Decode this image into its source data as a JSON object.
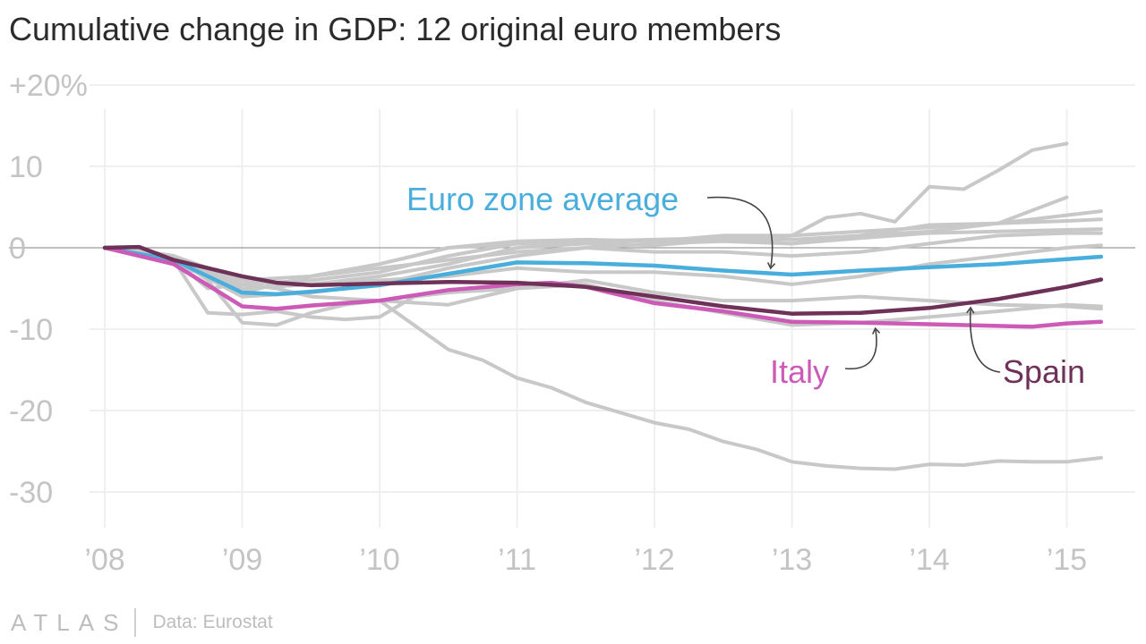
{
  "chart_data": {
    "type": "line",
    "title": "Cumulative change in GDP: 12 original euro members",
    "source": "Data: Eurostat",
    "brand": "ATLAS",
    "xlim": [
      2008,
      2015.25
    ],
    "ylim": [
      -32,
      22
    ],
    "y_ticks": [
      {
        "value": 20,
        "label": "+20%"
      },
      {
        "value": 10,
        "label": "10"
      },
      {
        "value": 0,
        "label": "0"
      },
      {
        "value": -10,
        "label": "-10"
      },
      {
        "value": -20,
        "label": "-20"
      },
      {
        "value": -30,
        "label": "-30"
      }
    ],
    "x_ticks": [
      {
        "value": 2008,
        "label": "’08"
      },
      {
        "value": 2009,
        "label": "’09"
      },
      {
        "value": 2010,
        "label": "’10"
      },
      {
        "value": 2011,
        "label": "’11"
      },
      {
        "value": 2012,
        "label": "’12"
      },
      {
        "value": 2013,
        "label": "’13"
      },
      {
        "value": 2014,
        "label": "’14"
      },
      {
        "value": 2015,
        "label": "’15"
      }
    ],
    "colors": {
      "background_series": "#c8c8c8",
      "euro_zone_average": "#4aaedc",
      "italy": "#cc5bb8",
      "spain": "#6e3158",
      "zero_line": "#9a9a9a",
      "arrow": "#444444"
    },
    "series": [
      {
        "name": "Euro zone average",
        "color": "#4aaedc",
        "x": [
          2008,
          2008.5,
          2009,
          2009.25,
          2009.5,
          2010,
          2010.5,
          2011,
          2011.5,
          2012,
          2012.5,
          2013,
          2013.5,
          2014,
          2014.5,
          2015,
          2015.25
        ],
        "y": [
          0,
          -1.5,
          -5.5,
          -5.7,
          -5.4,
          -4.6,
          -3.2,
          -1.8,
          -1.9,
          -2.2,
          -2.8,
          -3.3,
          -2.8,
          -2.4,
          -2.0,
          -1.4,
          -1.1
        ]
      },
      {
        "name": "Italy",
        "color": "#cc5bb8",
        "x": [
          2008,
          2008.5,
          2009,
          2009.25,
          2009.5,
          2010,
          2010.5,
          2011,
          2011.25,
          2011.5,
          2012,
          2012.5,
          2013,
          2013.5,
          2014,
          2014.5,
          2014.75,
          2015,
          2015.25
        ],
        "y": [
          0,
          -2.0,
          -7.2,
          -7.5,
          -7.1,
          -6.5,
          -5.2,
          -4.5,
          -4.3,
          -4.8,
          -6.8,
          -7.8,
          -9.1,
          -9.2,
          -9.4,
          -9.6,
          -9.7,
          -9.3,
          -9.1
        ]
      },
      {
        "name": "Spain",
        "color": "#6e3158",
        "x": [
          2008,
          2008.25,
          2008.5,
          2009,
          2009.25,
          2009.5,
          2010,
          2010.5,
          2011,
          2011.5,
          2012,
          2012.5,
          2013,
          2013.5,
          2014,
          2014.5,
          2015,
          2015.25
        ],
        "y": [
          0,
          0.1,
          -1.5,
          -3.5,
          -4.3,
          -4.6,
          -4.4,
          -4.2,
          -4.3,
          -4.8,
          -6.0,
          -7.2,
          -8.1,
          -8.0,
          -7.4,
          -6.3,
          -4.8,
          -3.9
        ]
      },
      {
        "x": [
          2008,
          2008.5,
          2008.75,
          2009,
          2009.25,
          2009.5,
          2010,
          2010.5,
          2011,
          2011.5,
          2012,
          2012.5,
          2013,
          2013.25,
          2013.5,
          2013.75,
          2014,
          2014.25,
          2014.5,
          2014.75,
          2015
        ],
        "y": [
          0,
          -1,
          -3.5,
          -5.5,
          -4.5,
          -3.5,
          -2,
          0,
          0.8,
          1,
          0.8,
          1.5,
          1.5,
          3.7,
          4.2,
          3.2,
          7.5,
          7.2,
          9.5,
          12,
          12.8
        ]
      },
      {
        "x": [
          2008,
          2008.5,
          2009,
          2009.25,
          2009.5,
          2010,
          2010.5,
          2011,
          2011.5,
          2012,
          2012.5,
          2013,
          2013.5,
          2014,
          2014.5,
          2015
        ],
        "y": [
          0,
          -1,
          -4,
          -4.5,
          -3.5,
          -2,
          0,
          0.5,
          0.8,
          1.0,
          1.2,
          1.0,
          1.5,
          2.0,
          3.0,
          6.2
        ]
      },
      {
        "x": [
          2008,
          2008.5,
          2009,
          2009.5,
          2010,
          2010.5,
          2011,
          2011.5,
          2012,
          2012.5,
          2013,
          2013.5,
          2014,
          2014.5,
          2015,
          2015.25
        ],
        "y": [
          0,
          -1,
          -4.5,
          -4.0,
          -3,
          -1,
          0.5,
          0.5,
          1.0,
          0.8,
          1.5,
          2.0,
          2.5,
          3.0,
          4.0,
          4.5
        ]
      },
      {
        "x": [
          2008,
          2008.5,
          2009,
          2009.5,
          2010,
          2010.5,
          2011,
          2011.5,
          2012,
          2012.5,
          2013,
          2013.5,
          2014,
          2014.5,
          2015,
          2015.25
        ],
        "y": [
          0,
          -1,
          -5,
          -4.5,
          -3.5,
          -2,
          0,
          0.5,
          0.3,
          1.0,
          0.5,
          1.5,
          2.8,
          3.0,
          3.3,
          3.5
        ]
      },
      {
        "x": [
          2008,
          2008.5,
          2009,
          2009.5,
          2010,
          2010.5,
          2011,
          2011.5,
          2012,
          2012.5,
          2013,
          2013.5,
          2014,
          2014.5,
          2015,
          2015.25
        ],
        "y": [
          0,
          -1.5,
          -6,
          -5.5,
          -4.5,
          -2.5,
          -1,
          0,
          0.5,
          0.8,
          0.5,
          1.2,
          1.8,
          2.0,
          2.2,
          2.3
        ]
      },
      {
        "x": [
          2008,
          2008.5,
          2009,
          2009.5,
          2010,
          2010.5,
          2011,
          2011.5,
          2012,
          2012.5,
          2013,
          2013.5,
          2014,
          2014.5,
          2015,
          2015.25
        ],
        "y": [
          0,
          -1,
          -4,
          -3.5,
          -2.5,
          -1.5,
          -0.5,
          0,
          -0.5,
          -0.5,
          -1,
          -0.5,
          0.5,
          1.5,
          1.8,
          1.8
        ]
      },
      {
        "x": [
          2008,
          2008.5,
          2009,
          2009.5,
          2010,
          2010.5,
          2011,
          2011.5,
          2012,
          2012.5,
          2013,
          2013.5,
          2014,
          2014.5,
          2015,
          2015.25
        ],
        "y": [
          0,
          -2,
          -5,
          -4.5,
          -4,
          -3.5,
          -2.5,
          -3,
          -3,
          -3.5,
          -4.5,
          -3.5,
          -2,
          -1,
          0,
          0.3
        ]
      },
      {
        "x": [
          2008,
          2008.5,
          2008.75,
          2009,
          2009.25,
          2009.5,
          2010,
          2010.5,
          2011,
          2011.5,
          2012,
          2012.5,
          2013,
          2013.5,
          2014,
          2014.5,
          2015,
          2015.25
        ],
        "y": [
          0,
          -1.5,
          -5,
          -4.5,
          -5,
          -6,
          -6.5,
          -7,
          -5,
          -4,
          -5.5,
          -6.5,
          -6.5,
          -6,
          -6.5,
          -7,
          -7.2,
          -7.5
        ]
      },
      {
        "x": [
          2008,
          2008.5,
          2008.75,
          2009,
          2009.25,
          2009.5,
          2009.75,
          2010,
          2010.25,
          2010.5,
          2011,
          2011.5,
          2012,
          2012.5,
          2013,
          2013.5,
          2014,
          2014.5,
          2015,
          2015.25
        ],
        "y": [
          0,
          -1.5,
          -8,
          -8.2,
          -7.8,
          -8.5,
          -8.8,
          -8.5,
          -6,
          -5.5,
          -5,
          -4.5,
          -6.5,
          -8,
          -9.5,
          -9.2,
          -8.5,
          -7.8,
          -7.0,
          -7.2
        ]
      },
      {
        "x": [
          2008,
          2008.25,
          2008.5,
          2008.75,
          2009,
          2009.25,
          2009.5,
          2009.75,
          2010,
          2010.25,
          2010.5,
          2010.75,
          2011,
          2011.25,
          2011.5,
          2012,
          2012.25,
          2012.5,
          2012.75,
          2013,
          2013.25,
          2013.5,
          2013.75,
          2014,
          2014.25,
          2014.5,
          2014.75,
          2015,
          2015.25
        ],
        "y": [
          0,
          -0.3,
          -1.0,
          -4.0,
          -9.2,
          -9.5,
          -8.0,
          -7.0,
          -6.5,
          -9.5,
          -12.5,
          -13.8,
          -16.0,
          -17.2,
          -19.0,
          -21.5,
          -22.3,
          -23.8,
          -24.8,
          -26.3,
          -26.8,
          -27.1,
          -27.2,
          -26.6,
          -26.7,
          -26.2,
          -26.3,
          -26.3,
          -25.8
        ]
      }
    ],
    "annotations": [
      {
        "text": "Euro zone average",
        "color": "#4aaedc",
        "points_to": {
          "x": 2012.85,
          "y": -2.3
        }
      },
      {
        "text": "Italy",
        "color": "#cc5bb8",
        "points_to": {
          "x": 2013.6,
          "y": -9.8
        }
      },
      {
        "text": "Spain",
        "color": "#6e3158",
        "points_to": {
          "x": 2014.3,
          "y": -7.7
        }
      }
    ]
  }
}
